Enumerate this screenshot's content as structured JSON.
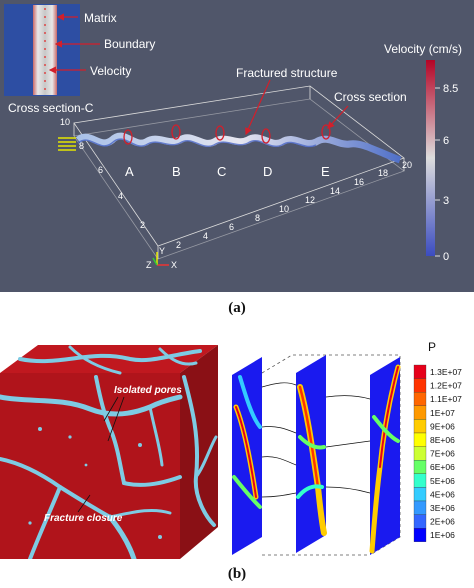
{
  "panel_a": {
    "inset_labels": {
      "matrix": "Matrix",
      "boundary": "Boundary",
      "velocity": "Velocity",
      "cross_section_c": "Cross section-C"
    },
    "main_labels": {
      "fractured_structure": "Fractured structure",
      "cross_section": "Cross section"
    },
    "section_letters": [
      "A",
      "B",
      "C",
      "D",
      "E"
    ],
    "x_ticks": [
      "2",
      "4",
      "6",
      "8",
      "10",
      "12",
      "14",
      "16",
      "18",
      "20"
    ],
    "y_ticks": [
      "2",
      "4",
      "6",
      "8",
      "10"
    ],
    "colorbar": {
      "title": "Velocity (cm/s)",
      "ticks": [
        "8.5",
        "6",
        "3",
        "0"
      ]
    },
    "axes_triad": {
      "x": "X",
      "y": "Y",
      "z": "Z"
    },
    "colors": {
      "background": "#50566a",
      "matrix": "#2f4fa3",
      "velocity_low": "#3b4cc0",
      "velocity_high": "#b40426"
    }
  },
  "panel_b": {
    "cube_labels": {
      "isolated_pores": "Isolated pores",
      "fracture_closure": "Fracture closure"
    },
    "legend": {
      "title": "P",
      "values": [
        "1.3E+07",
        "1.2E+07",
        "1.1E+07",
        "1E+07",
        "9E+06",
        "8E+06",
        "7E+06",
        "6E+06",
        "5E+06",
        "4E+06",
        "3E+06",
        "2E+06",
        "1E+06"
      ],
      "colors": [
        "#e6001a",
        "#ff3300",
        "#ff6600",
        "#ff9900",
        "#ffcc00",
        "#ffff00",
        "#ccff33",
        "#66ff66",
        "#33ffcc",
        "#33ccff",
        "#3399ff",
        "#3366ff",
        "#0000ff"
      ]
    },
    "colors": {
      "cube_red": "#b0141b",
      "pore": "#7ecbe3",
      "slice_bg": "#1a1aef"
    }
  },
  "captions": {
    "a": "(a)",
    "b": "(b)"
  }
}
